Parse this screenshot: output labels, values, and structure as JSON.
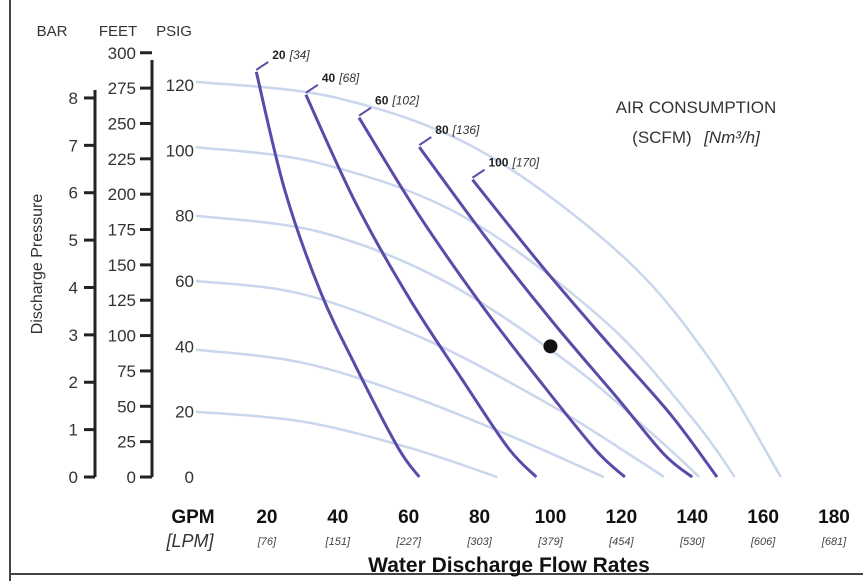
{
  "chart_data": {
    "type": "line",
    "title": "",
    "xlabel": "Water Discharge Flow Rates",
    "ylabel": "Discharge Pressure",
    "x_unit_primary": "GPM",
    "x_unit_secondary": "[LPM]",
    "xlim": [
      0,
      180
    ],
    "ylim": [
      0,
      125
    ],
    "x_ticks": [
      {
        "gpm": "20",
        "lpm": "[76]",
        "value": 20
      },
      {
        "gpm": "40",
        "lpm": "[151]",
        "value": 40
      },
      {
        "gpm": "60",
        "lpm": "[227]",
        "value": 60
      },
      {
        "gpm": "80",
        "lpm": "[303]",
        "value": 80
      },
      {
        "gpm": "100",
        "lpm": "[379]",
        "value": 100
      },
      {
        "gpm": "120",
        "lpm": "[454]",
        "value": 120
      },
      {
        "gpm": "140",
        "lpm": "[530]",
        "value": 140
      },
      {
        "gpm": "160",
        "lpm": "[606]",
        "value": 160
      },
      {
        "gpm": "180",
        "lpm": "[681]",
        "value": 180
      }
    ],
    "y_axes": {
      "bar": {
        "label": "BAR",
        "ticks": [
          "0",
          "1",
          "2",
          "3",
          "4",
          "5",
          "6",
          "7",
          "8"
        ],
        "per_psi": 14.5038
      },
      "feet": {
        "label": "FEET",
        "ticks": [
          "0",
          "25",
          "50",
          "75",
          "100",
          "125",
          "150",
          "175",
          "200",
          "225",
          "250",
          "275",
          "300"
        ],
        "per_psi": 2.31
      },
      "psig": {
        "label": "PSIG",
        "ticks": [
          "0",
          "20",
          "40",
          "60",
          "80",
          "100",
          "120"
        ]
      }
    },
    "air_consumption_title_line1": "AIR CONSUMPTION",
    "air_consumption_title_line2": "(SCFM)",
    "air_consumption_title_unit": "[Nm³/h]",
    "series": [
      {
        "name": "20",
        "metric": "[34]",
        "points": [
          [
            17,
            124
          ],
          [
            25,
            88
          ],
          [
            35,
            57
          ],
          [
            45,
            34
          ],
          [
            57,
            9
          ],
          [
            63,
            0
          ]
        ]
      },
      {
        "name": "40",
        "metric": "[68]",
        "points": [
          [
            31,
            117
          ],
          [
            45,
            84
          ],
          [
            60,
            55
          ],
          [
            75,
            30
          ],
          [
            88,
            9
          ],
          [
            96,
            0
          ]
        ]
      },
      {
        "name": "60",
        "metric": "[102]",
        "points": [
          [
            46,
            110
          ],
          [
            63,
            80
          ],
          [
            81,
            52
          ],
          [
            98,
            28
          ],
          [
            113,
            8
          ],
          [
            121,
            0
          ]
        ]
      },
      {
        "name": "80",
        "metric": "[136]",
        "points": [
          [
            63,
            101
          ],
          [
            82,
            73
          ],
          [
            101,
            47
          ],
          [
            119,
            24
          ],
          [
            132,
            7
          ],
          [
            140,
            0
          ]
        ]
      },
      {
        "name": "100",
        "metric": "[170]",
        "points": [
          [
            78,
            91
          ],
          [
            98,
            64
          ],
          [
            117,
            40
          ],
          [
            134,
            19
          ],
          [
            147,
            0
          ]
        ]
      }
    ],
    "iso_lines": [
      {
        "points": [
          [
            0,
            121
          ],
          [
            40,
            116
          ],
          [
            80,
            100
          ],
          [
            120,
            68
          ],
          [
            145,
            36
          ],
          [
            165,
            0
          ]
        ]
      },
      {
        "points": [
          [
            0,
            101
          ],
          [
            35,
            96
          ],
          [
            75,
            80
          ],
          [
            115,
            48
          ],
          [
            140,
            18
          ],
          [
            152,
            0
          ]
        ]
      },
      {
        "points": [
          [
            0,
            80
          ],
          [
            35,
            75
          ],
          [
            70,
            60
          ],
          [
            105,
            35
          ],
          [
            130,
            12
          ],
          [
            142,
            0
          ]
        ]
      },
      {
        "points": [
          [
            0,
            60
          ],
          [
            30,
            56
          ],
          [
            65,
            42
          ],
          [
            100,
            22
          ],
          [
            125,
            5
          ],
          [
            132,
            0
          ]
        ]
      },
      {
        "points": [
          [
            0,
            39
          ],
          [
            30,
            35
          ],
          [
            60,
            25
          ],
          [
            90,
            12
          ],
          [
            115,
            0
          ]
        ]
      },
      {
        "points": [
          [
            0,
            20
          ],
          [
            30,
            17
          ],
          [
            60,
            9
          ],
          [
            85,
            0
          ]
        ]
      }
    ],
    "operating_point": {
      "gpm": 100,
      "psig": 40
    },
    "grid": false,
    "legend": "none"
  }
}
